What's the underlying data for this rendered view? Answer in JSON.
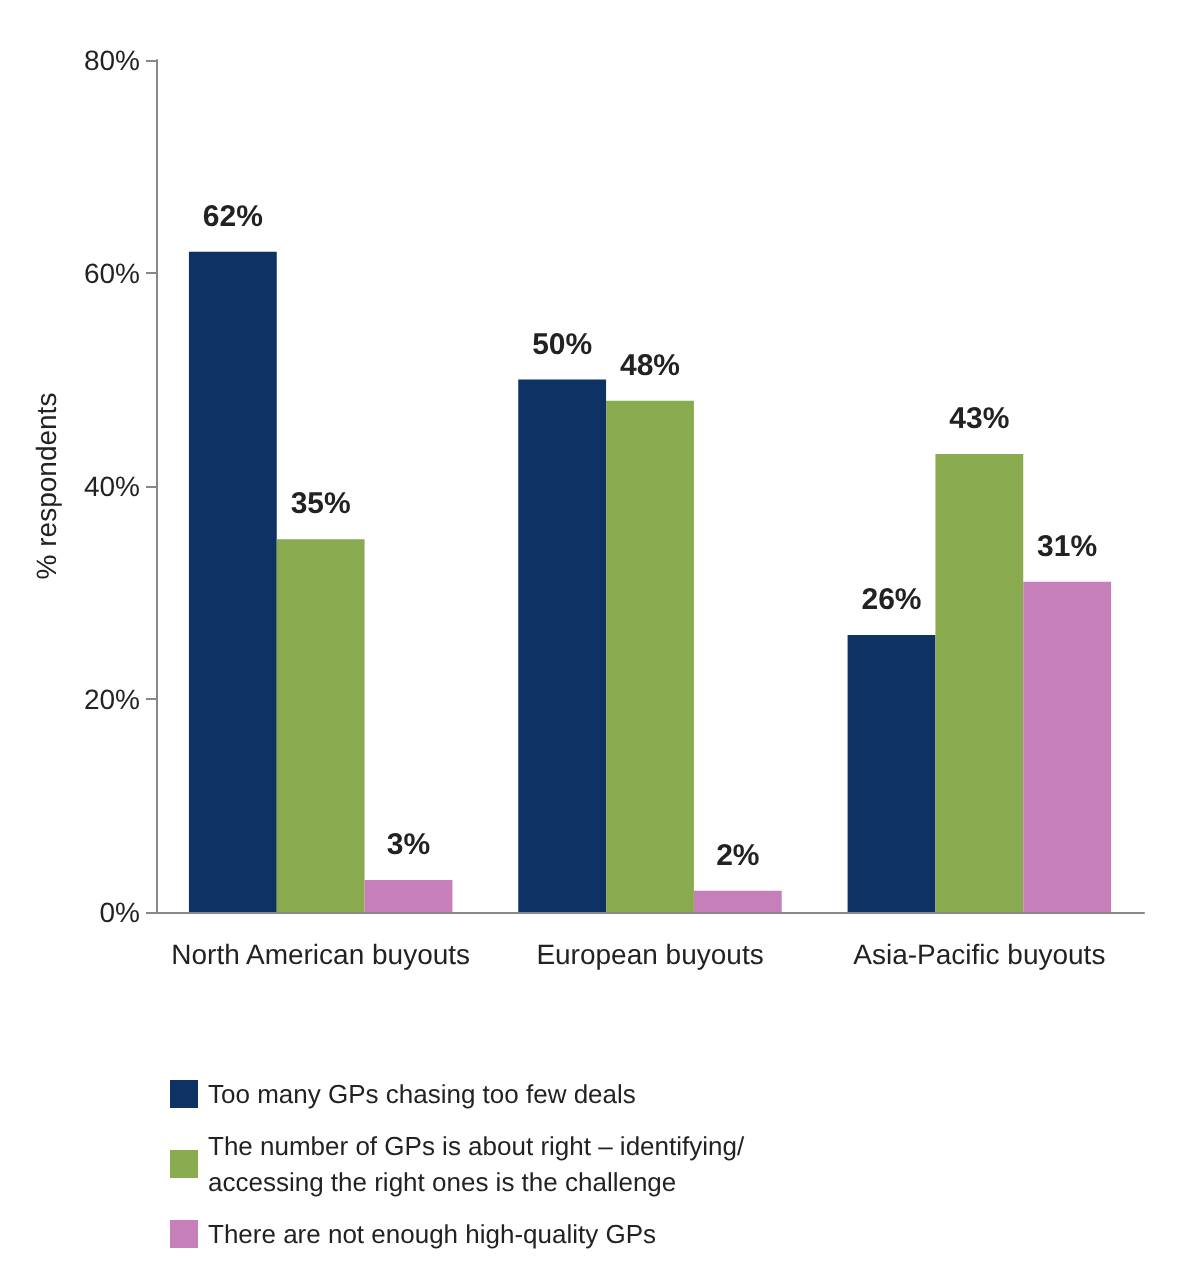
{
  "chart_data": {
    "type": "bar",
    "ylabel": "% respondents",
    "categories": [
      "North American buyouts",
      "European buyouts",
      "Asia-Pacific buyouts"
    ],
    "series": [
      {
        "name": "Too many GPs chasing too few deals",
        "color": "#0d3263",
        "values": [
          62,
          50,
          26
        ],
        "value_labels": [
          "62%",
          "50%",
          "26%"
        ]
      },
      {
        "name": "The number of GPs is about right – identifying/accessing the right ones is the challenge",
        "color": "#8aaa4f",
        "values": [
          35,
          48,
          43
        ],
        "value_labels": [
          "35%",
          "48%",
          "43%"
        ]
      },
      {
        "name": "There are not enough high-quality GPs",
        "color": "#c77fb9",
        "values": [
          3,
          2,
          31
        ],
        "value_labels": [
          "3%",
          "2%",
          "31%"
        ]
      }
    ],
    "ylim": [
      0,
      80
    ],
    "yticks": [
      {
        "value": 0,
        "label": "0%"
      },
      {
        "value": 20,
        "label": "20%"
      },
      {
        "value": 40,
        "label": "40%"
      },
      {
        "value": 60,
        "label": "60%"
      },
      {
        "value": 80,
        "label": "80%"
      }
    ],
    "grid": false,
    "legend": "bottom"
  }
}
